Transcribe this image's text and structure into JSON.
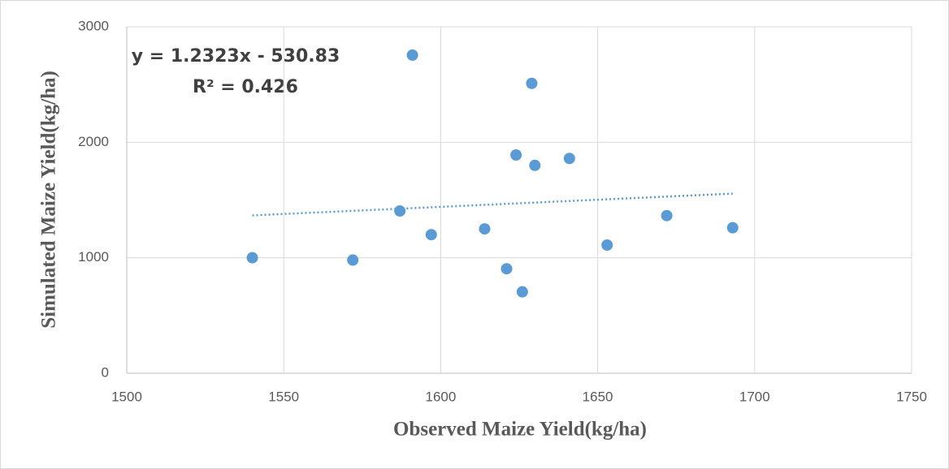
{
  "chart_data": {
    "type": "scatter",
    "x_label": "Observed Maize Yield(kg/ha)",
    "y_label": "Simulated Maize Yield(kg/ha)",
    "x": [
      1540,
      1572,
      1587,
      1591,
      1597,
      1614,
      1621,
      1624,
      1626,
      1629,
      1630,
      1641,
      1653,
      1672,
      1693
    ],
    "series": [
      {
        "color": "#5b9bd5",
        "values": [
          1000,
          980,
          1405,
          2755,
          1200,
          1250,
          905,
          1890,
          705,
          2510,
          1800,
          1860,
          1110,
          1365,
          1260
        ]
      }
    ],
    "trendline": {
      "slope": 1.2323,
      "intercept": -530.83,
      "equation": "y = 1.2323x - 530.83",
      "r2": "R² = 0.426",
      "color": "#5b9bd5"
    },
    "xlim": [
      1500,
      1750
    ],
    "xticks": [
      1500,
      1550,
      1600,
      1650,
      1700,
      1750
    ],
    "ylim": [
      0,
      3000
    ],
    "yticks": [
      0,
      1000,
      2000,
      3000
    ],
    "grid": true
  }
}
